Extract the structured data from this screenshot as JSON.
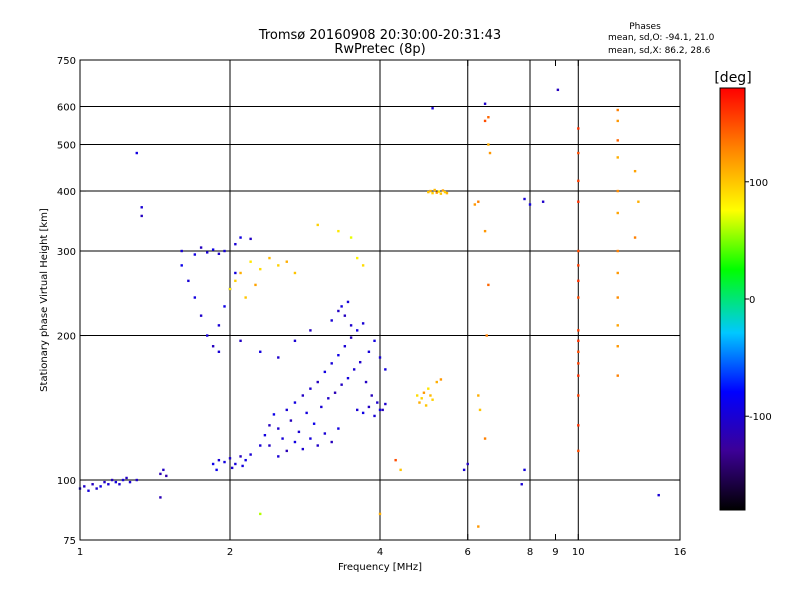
{
  "chart_data": {
    "type": "scatter",
    "title": "Tromsø 20160908 20:30:00-20:31:43",
    "subtitle": "RwPretec (8p)",
    "stats": {
      "heading": "Phases",
      "line1": "mean, sd,O: -94.1, 21.0",
      "line2": "mean, sd,X:  86.2, 28.6"
    },
    "xlabel": "Frequency [MHz]",
    "ylabel": "Stationary phase Virtual Height [km]",
    "x_scale": "log2",
    "y_scale": "log",
    "xlim": [
      1,
      16
    ],
    "ylim": [
      75,
      750
    ],
    "x_ticks": [
      1,
      2,
      4,
      6,
      8,
      9,
      10,
      16
    ],
    "x_tick_labels": [
      "1",
      "2",
      "4",
      "6",
      "8",
      "9",
      "10",
      "16"
    ],
    "x_gridlines": [
      2,
      4,
      6,
      8,
      10
    ],
    "y_ticks": [
      75,
      100,
      200,
      300,
      400,
      500,
      600,
      750
    ],
    "y_tick_labels": [
      "75",
      "100",
      "200",
      "300",
      "400",
      "500",
      "600",
      "750"
    ],
    "y_gridlines": [
      100,
      200,
      300,
      400,
      500,
      600
    ],
    "grid": true,
    "colorbar": {
      "label": "[deg]",
      "range": [
        -180,
        180
      ],
      "ticks": [
        100,
        0,
        -100
      ],
      "tick_labels": [
        "100",
        "0",
        "-100"
      ],
      "placement": "right"
    },
    "series": [
      {
        "mode": "O",
        "phase_mean": -94.1,
        "points": [
          [
            1.0,
            96,
            -100
          ],
          [
            1.02,
            97,
            -105
          ],
          [
            1.04,
            95,
            -98
          ],
          [
            1.06,
            98,
            -110
          ],
          [
            1.08,
            96,
            -102
          ],
          [
            1.1,
            97,
            -95
          ],
          [
            1.12,
            99,
            -108
          ],
          [
            1.14,
            98,
            -100
          ],
          [
            1.16,
            100,
            -112
          ],
          [
            1.18,
            99,
            -96
          ],
          [
            1.2,
            98,
            -104
          ],
          [
            1.22,
            100,
            -98
          ],
          [
            1.24,
            101,
            -110
          ],
          [
            1.26,
            99,
            -100
          ],
          [
            1.3,
            100,
            -106
          ],
          [
            1.45,
            103,
            -115
          ],
          [
            1.47,
            105,
            -108
          ],
          [
            1.49,
            102,
            -120
          ],
          [
            1.45,
            92,
            -115
          ],
          [
            1.85,
            108,
            -90
          ],
          [
            1.9,
            110,
            -100
          ],
          [
            1.95,
            109,
            -95
          ],
          [
            2.0,
            111,
            -105
          ],
          [
            2.05,
            108,
            -98
          ],
          [
            2.1,
            112,
            -110
          ],
          [
            2.15,
            110,
            -92
          ],
          [
            2.2,
            113,
            -100
          ],
          [
            1.88,
            105,
            -88
          ],
          [
            2.02,
            106,
            -102
          ],
          [
            2.12,
            107,
            -96
          ],
          [
            2.3,
            118,
            -100
          ],
          [
            2.35,
            124,
            -95
          ],
          [
            2.4,
            130,
            -110
          ],
          [
            2.45,
            137,
            -90
          ],
          [
            2.5,
            128,
            -105
          ],
          [
            2.55,
            122,
            -98
          ],
          [
            2.6,
            140,
            -100
          ],
          [
            2.65,
            133,
            -112
          ],
          [
            2.7,
            145,
            -95
          ],
          [
            2.75,
            126,
            -102
          ],
          [
            2.8,
            150,
            -108
          ],
          [
            2.85,
            138,
            -96
          ],
          [
            2.9,
            155,
            -104
          ],
          [
            2.95,
            131,
            -90
          ],
          [
            3.0,
            160,
            -110
          ],
          [
            3.05,
            142,
            -100
          ],
          [
            3.1,
            168,
            -94
          ],
          [
            3.15,
            148,
            -106
          ],
          [
            3.2,
            175,
            -98
          ],
          [
            3.25,
            152,
            -115
          ],
          [
            3.3,
            182,
            -92
          ],
          [
            3.35,
            158,
            -108
          ],
          [
            3.4,
            190,
            -100
          ],
          [
            3.45,
            163,
            -96
          ],
          [
            3.5,
            198,
            -110
          ],
          [
            3.55,
            170,
            -102
          ],
          [
            3.6,
            205,
            -95
          ],
          [
            3.65,
            176,
            -105
          ],
          [
            3.7,
            212,
            -100
          ],
          [
            3.75,
            160,
            -108
          ],
          [
            3.8,
            185,
            -98
          ],
          [
            3.85,
            150,
            -112
          ],
          [
            3.9,
            195,
            -94
          ],
          [
            3.95,
            145,
            -104
          ],
          [
            4.0,
            180,
            -100
          ],
          [
            4.05,
            140,
            -110
          ],
          [
            4.1,
            170,
            -96
          ],
          [
            2.4,
            118,
            -108
          ],
          [
            2.5,
            112,
            -100
          ],
          [
            2.6,
            115,
            -115
          ],
          [
            2.7,
            120,
            -94
          ],
          [
            2.8,
            116,
            -102
          ],
          [
            2.9,
            122,
            -98
          ],
          [
            3.0,
            118,
            -106
          ],
          [
            3.1,
            125,
            -100
          ],
          [
            3.2,
            120,
            -112
          ],
          [
            3.3,
            128,
            -95
          ],
          [
            3.2,
            215,
            -100
          ],
          [
            3.3,
            225,
            -108
          ],
          [
            3.35,
            230,
            -96
          ],
          [
            3.4,
            220,
            -110
          ],
          [
            3.45,
            235,
            -98
          ],
          [
            3.5,
            210,
            -104
          ],
          [
            3.6,
            140,
            -100
          ],
          [
            3.7,
            138,
            -92
          ],
          [
            3.8,
            142,
            -108
          ],
          [
            3.9,
            136,
            -100
          ],
          [
            4.0,
            140,
            -96
          ],
          [
            4.1,
            144,
            -104
          ],
          [
            1.6,
            300,
            -100
          ],
          [
            1.7,
            295,
            -95
          ],
          [
            1.75,
            305,
            -110
          ],
          [
            1.8,
            298,
            -100
          ],
          [
            1.85,
            302,
            -92
          ],
          [
            1.9,
            296,
            -105
          ],
          [
            1.95,
            300,
            -98
          ],
          [
            2.05,
            310,
            -100
          ],
          [
            2.1,
            320,
            -95
          ],
          [
            2.2,
            318,
            -108
          ],
          [
            1.6,
            280,
            -90
          ],
          [
            1.65,
            260,
            -100
          ],
          [
            1.7,
            240,
            -95
          ],
          [
            1.75,
            220,
            -105
          ],
          [
            1.8,
            200,
            -98
          ],
          [
            1.85,
            190,
            -110
          ],
          [
            1.9,
            210,
            -100
          ],
          [
            1.95,
            230,
            -92
          ],
          [
            2.0,
            250,
            -104
          ],
          [
            2.05,
            270,
            -96
          ],
          [
            1.9,
            185,
            -100
          ],
          [
            2.1,
            195,
            -108
          ],
          [
            2.3,
            185,
            -96
          ],
          [
            2.5,
            180,
            -104
          ],
          [
            2.7,
            195,
            -100
          ],
          [
            2.9,
            205,
            -110
          ],
          [
            5.9,
            105,
            -100
          ],
          [
            6.0,
            108,
            -108
          ],
          [
            7.7,
            98,
            -100
          ],
          [
            7.8,
            105,
            -96
          ],
          [
            9.1,
            650,
            -110
          ],
          [
            7.8,
            385,
            -100
          ],
          [
            8.0,
            375,
            -95
          ],
          [
            8.5,
            380,
            -105
          ],
          [
            14.5,
            93,
            -100
          ],
          [
            1.3,
            480,
            -95
          ],
          [
            1.33,
            370,
            -100
          ],
          [
            1.33,
            355,
            -110
          ],
          [
            6.5,
            608,
            -105
          ],
          [
            5.1,
            595,
            -100
          ]
        ]
      },
      {
        "mode": "X",
        "phase_mean": 86.2,
        "points": [
          [
            5.0,
            398,
            100
          ],
          [
            5.05,
            400,
            110
          ],
          [
            5.1,
            396,
            95
          ],
          [
            5.15,
            402,
            105
          ],
          [
            5.2,
            397,
            120
          ],
          [
            5.25,
            399,
            90
          ],
          [
            5.3,
            395,
            100
          ],
          [
            5.35,
            401,
            115
          ],
          [
            5.4,
            398,
            95
          ],
          [
            5.45,
            396,
            108
          ],
          [
            4.75,
            150,
            90
          ],
          [
            4.8,
            145,
            110
          ],
          [
            4.85,
            148,
            95
          ],
          [
            4.9,
            152,
            120
          ],
          [
            4.95,
            143,
            100
          ],
          [
            5.0,
            155,
            85
          ],
          [
            5.05,
            150,
            105
          ],
          [
            5.1,
            147,
            95
          ],
          [
            5.2,
            160,
            110
          ],
          [
            5.3,
            162,
            120
          ],
          [
            2.0,
            250,
            80
          ],
          [
            2.05,
            260,
            95
          ],
          [
            2.1,
            270,
            110
          ],
          [
            2.15,
            240,
            100
          ],
          [
            2.2,
            285,
            85
          ],
          [
            2.25,
            255,
            115
          ],
          [
            2.3,
            275,
            90
          ],
          [
            2.4,
            290,
            105
          ],
          [
            2.5,
            280,
            95
          ],
          [
            2.6,
            285,
            110
          ],
          [
            2.7,
            270,
            100
          ],
          [
            6.2,
            375,
            120
          ],
          [
            6.3,
            380,
            130
          ],
          [
            6.6,
            500,
            110
          ],
          [
            6.65,
            480,
            120
          ],
          [
            6.6,
            570,
            140
          ],
          [
            6.5,
            560,
            150
          ],
          [
            6.55,
            200,
            130
          ],
          [
            6.6,
            255,
            140
          ],
          [
            6.5,
            330,
            120
          ],
          [
            6.3,
            150,
            110
          ],
          [
            6.35,
            140,
            100
          ],
          [
            6.5,
            122,
            130
          ],
          [
            6.3,
            80,
            120
          ],
          [
            10.0,
            540,
            160
          ],
          [
            10.0,
            480,
            150
          ],
          [
            10.0,
            420,
            155
          ],
          [
            10.0,
            380,
            160
          ],
          [
            10.0,
            300,
            150
          ],
          [
            10.0,
            280,
            155
          ],
          [
            10.0,
            260,
            160
          ],
          [
            10.0,
            240,
            150
          ],
          [
            10.0,
            205,
            155
          ],
          [
            10.0,
            195,
            160
          ],
          [
            10.0,
            185,
            150
          ],
          [
            10.0,
            175,
            155
          ],
          [
            10.0,
            165,
            160
          ],
          [
            10.0,
            150,
            155
          ],
          [
            10.0,
            130,
            160
          ],
          [
            10.0,
            115,
            150
          ],
          [
            12.0,
            590,
            130
          ],
          [
            12.0,
            560,
            120
          ],
          [
            12.0,
            510,
            140
          ],
          [
            12.0,
            470,
            110
          ],
          [
            12.0,
            400,
            125
          ],
          [
            12.0,
            360,
            115
          ],
          [
            12.0,
            300,
            130
          ],
          [
            12.0,
            270,
            120
          ],
          [
            12.0,
            240,
            125
          ],
          [
            12.0,
            210,
            115
          ],
          [
            12.0,
            190,
            120
          ],
          [
            12.0,
            165,
            130
          ],
          [
            3.6,
            290,
            80
          ],
          [
            3.7,
            280,
            90
          ],
          [
            3.5,
            320,
            70
          ],
          [
            3.3,
            330,
            85
          ],
          [
            3.0,
            340,
            95
          ],
          [
            2.3,
            85,
            60
          ],
          [
            4.0,
            85,
            110
          ],
          [
            4.4,
            105,
            100
          ],
          [
            4.3,
            110,
            150
          ],
          [
            13.0,
            440,
            115
          ],
          [
            13.0,
            320,
            130
          ],
          [
            13.2,
            380,
            110
          ]
        ]
      }
    ]
  }
}
